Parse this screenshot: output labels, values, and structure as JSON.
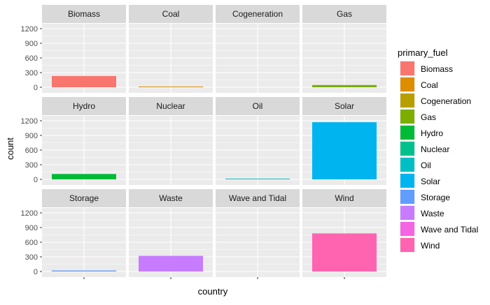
{
  "chart_data": {
    "type": "bar",
    "facet_by": "primary_fuel",
    "xlabel": "country",
    "ylabel": "count",
    "ylim": [
      0,
      1300
    ],
    "yticks": [
      0,
      300,
      600,
      900,
      1200
    ],
    "x_tick_label": "",
    "grid": true,
    "legend_title": "primary_fuel",
    "legend_position": "right",
    "panels": [
      {
        "name": "Biomass",
        "value": 230,
        "color": "#F8766D"
      },
      {
        "name": "Coal",
        "value": 5,
        "color": "#DE8C00"
      },
      {
        "name": "Cogeneration",
        "value": 0,
        "color": "#B79F00"
      },
      {
        "name": "Gas",
        "value": 45,
        "color": "#7CAE00"
      },
      {
        "name": "Hydro",
        "value": 110,
        "color": "#00BA38"
      },
      {
        "name": "Nuclear",
        "value": 0,
        "color": "#00C08B"
      },
      {
        "name": "Oil",
        "value": 8,
        "color": "#00BFC4"
      },
      {
        "name": "Solar",
        "value": 1170,
        "color": "#00B4F0"
      },
      {
        "name": "Storage",
        "value": 20,
        "color": "#619CFF"
      },
      {
        "name": "Waste",
        "value": 320,
        "color": "#C77CFF"
      },
      {
        "name": "Wave and Tidal",
        "value": 0,
        "color": "#F564E3"
      },
      {
        "name": "Wind",
        "value": 780,
        "color": "#FF64B0"
      }
    ]
  }
}
